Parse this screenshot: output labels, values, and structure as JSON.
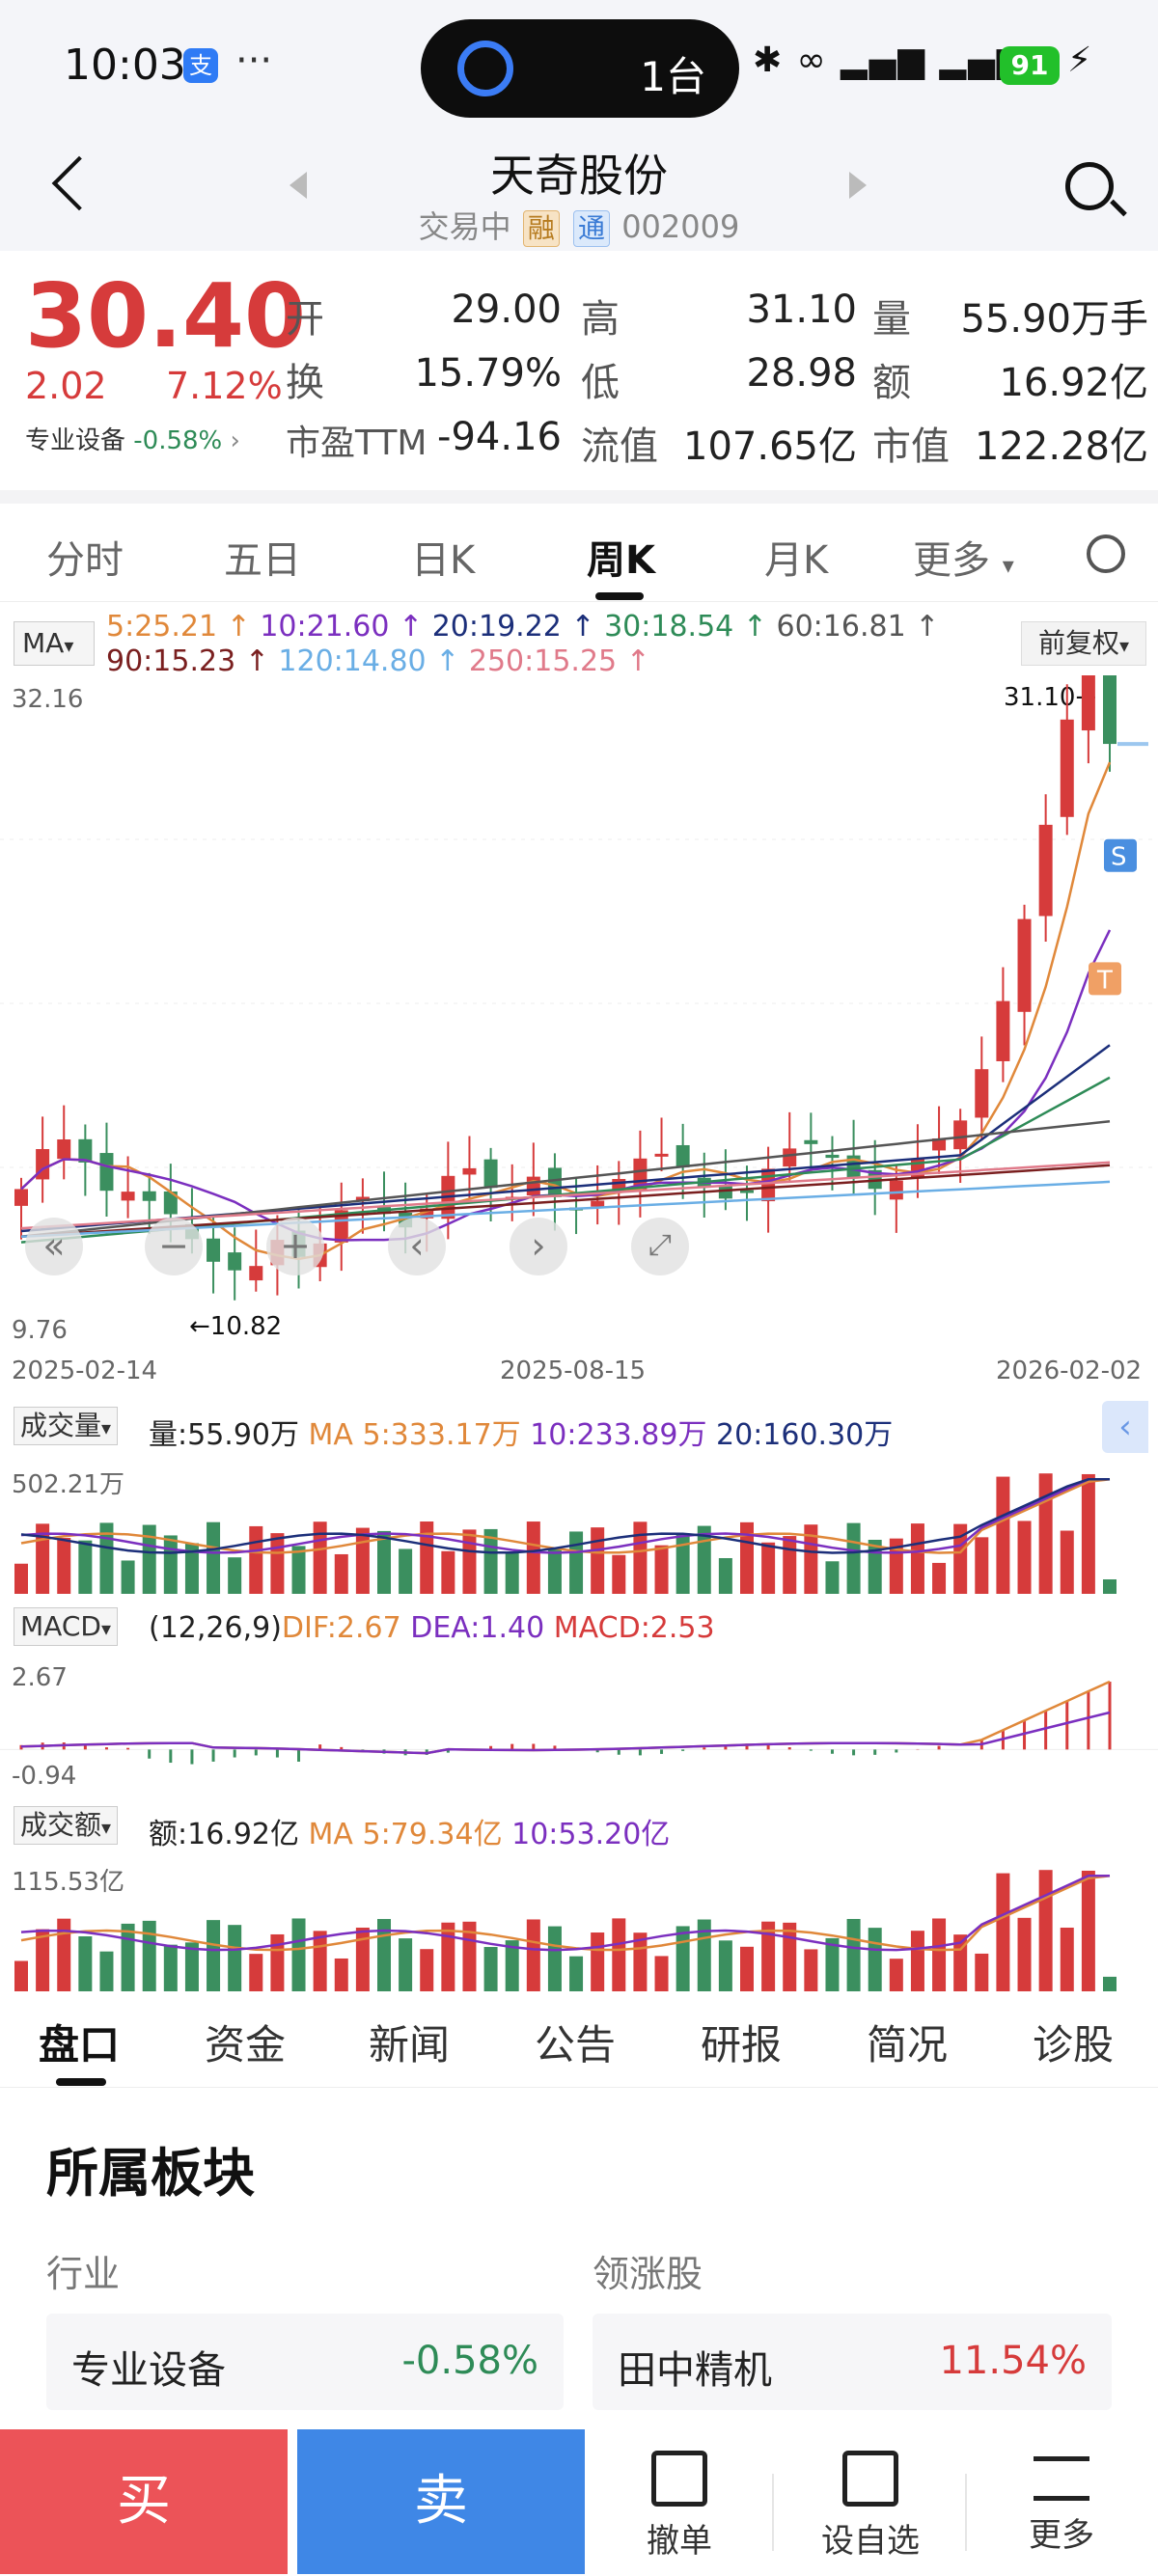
{
  "status_bar": {
    "time": "10:03",
    "alipay": "支",
    "more": "···",
    "pill_text": "1台",
    "battery": "91"
  },
  "header": {
    "name": "天奇股份",
    "status": "交易中",
    "tag_rong": "融",
    "tag_tong": "通",
    "code": "002009"
  },
  "quote": {
    "price": "30.40",
    "change": "2.02",
    "change_pct": "7.12%",
    "sector": "专业设备",
    "sector_change": "-0.58%",
    "fields": [
      {
        "label": "开",
        "value": "29.00",
        "color": "#d63b3b"
      },
      {
        "label": "高",
        "value": "31.10",
        "color": "#d63b3b"
      },
      {
        "label": "量",
        "value": "55.90万手",
        "color": "#222222"
      },
      {
        "label": "换",
        "value": "15.79%",
        "color": "#222222"
      },
      {
        "label": "低",
        "value": "28.98",
        "color": "#d63b3b"
      },
      {
        "label": "额",
        "value": "16.92亿",
        "color": "#222222"
      },
      {
        "label": "市盈TTM",
        "value": "-94.16",
        "color": "#222222"
      },
      {
        "label": "流值",
        "value": "107.65亿",
        "color": "#222222"
      },
      {
        "label": "市值",
        "value": "122.28亿",
        "color": "#222222"
      }
    ]
  },
  "chart_tabs": [
    "分时",
    "五日",
    "日K",
    "周K",
    "月K",
    "更多"
  ],
  "active_chart_tab": "周K",
  "ma_legend": {
    "selector": "MA",
    "row1": [
      {
        "text": "5:25.21 ↑",
        "color": "#e0883a"
      },
      {
        "text": "10:21.60 ↑",
        "color": "#7b2fbf"
      },
      {
        "text": "20:19.22 ↑",
        "color": "#1c2f7a"
      },
      {
        "text": "30:18.54 ↑",
        "color": "#2e8b57"
      },
      {
        "text": "60:16.81 ↑",
        "color": "#555555"
      }
    ],
    "row2": [
      {
        "text": "90:15.23 ↑",
        "color": "#7a1f1f"
      },
      {
        "text": "120:14.80 ↑",
        "color": "#6aaee5"
      },
      {
        "text": "250:15.25 ↑",
        "color": "#e07a8a"
      }
    ],
    "fuquan": "前复权"
  },
  "kline": {
    "y_top_label": "32.16",
    "y_bottom_label": "9.76",
    "high_marker": "31.10→",
    "low_marker": "←10.82",
    "dates": [
      "2025-02-14",
      "2025-08-15",
      "2026-02-02"
    ],
    "s_marker": "S",
    "t_marker": "T"
  },
  "volume": {
    "selector": "成交量",
    "current": "量:55.90万",
    "ma5": "MA 5:333.17万",
    "ma10": "10:233.89万",
    "ma20": "20:160.30万",
    "top_label": "502.21万"
  },
  "macd": {
    "selector": "MACD",
    "params": "(12,26,9)",
    "dif": "DIF:2.67",
    "dea": "DEA:1.40",
    "macd": "MACD:2.53",
    "top_label": "2.67",
    "bottom_label": "-0.94"
  },
  "amount": {
    "selector": "成交额",
    "current": "额:16.92亿",
    "ma5": "MA 5:79.34亿",
    "ma10": "10:53.20亿",
    "top_label": "115.53亿"
  },
  "chart_data": {
    "type": "candlestick",
    "x_range": [
      "2025-02-14",
      "2026-02-02"
    ],
    "ylim": [
      9.76,
      32.16
    ],
    "series": [
      {
        "name": "MA5",
        "last": 25.21
      },
      {
        "name": "MA10",
        "last": 21.6
      },
      {
        "name": "MA20",
        "last": 19.22
      },
      {
        "name": "MA30",
        "last": 18.54
      },
      {
        "name": "MA60",
        "last": 16.81
      },
      {
        "name": "MA90",
        "last": 15.23
      },
      {
        "name": "MA120",
        "last": 14.8
      },
      {
        "name": "MA250",
        "last": 15.25
      }
    ],
    "high": 31.1,
    "low": 10.82,
    "volume_max": "502.21万",
    "macd_range": [
      -0.94,
      2.67
    ],
    "amount_max": "115.53亿"
  },
  "section_tabs": [
    "盘口",
    "资金",
    "新闻",
    "公告",
    "研报",
    "简况",
    "诊股"
  ],
  "active_section_tab": "盘口",
  "blocks": {
    "title": "所属板块",
    "industry_label": "行业",
    "leader_label": "领涨股",
    "industry_name": "专业设备",
    "industry_change": "-0.58%",
    "leader_name": "田中精机",
    "leader_change": "11.54%"
  },
  "actions": {
    "buy": "买",
    "sell": "卖",
    "cancel": "撤单",
    "watch": "设自选",
    "more": "更多"
  }
}
